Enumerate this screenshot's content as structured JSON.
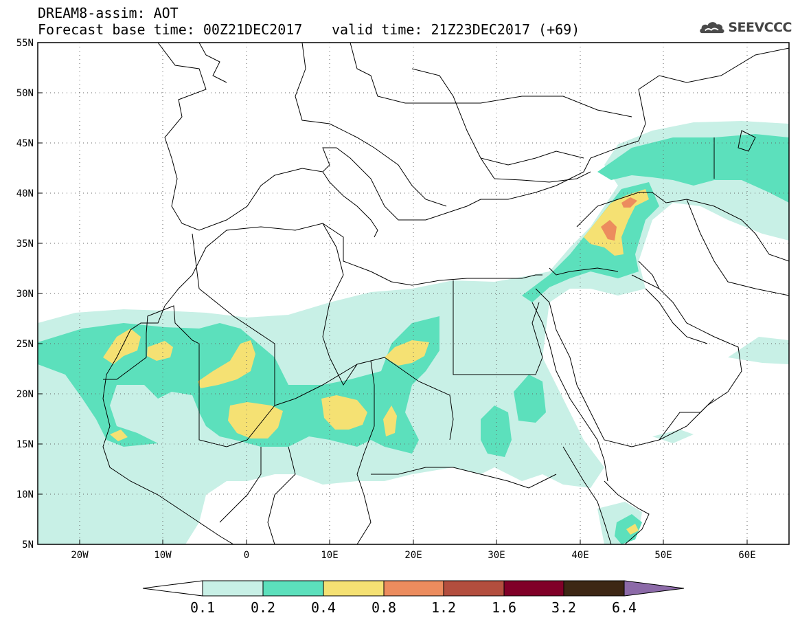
{
  "header": {
    "line1": "DREAM8-assim: AOT",
    "line2": "Forecast base time: 00Z21DEC2017",
    "valid": "valid time: 21Z23DEC2017 (+69)",
    "logo_text": "SEEVCCC",
    "logo_icon": "cloud-icon"
  },
  "map": {
    "lon_range": [
      -25,
      65
    ],
    "lat_range": [
      5,
      55
    ],
    "x_ticks": [
      "20W",
      "10W",
      "0",
      "10E",
      "20E",
      "30E",
      "40E",
      "50E",
      "60E"
    ],
    "y_ticks": [
      "55N",
      "50N",
      "45N",
      "40N",
      "35N",
      "30N",
      "25N",
      "20N",
      "15N",
      "10N",
      "5N"
    ],
    "grid": "dotted"
  },
  "colorbar": {
    "labels": [
      "0.1",
      "0.2",
      "0.4",
      "0.8",
      "1.2",
      "1.6",
      "3.2",
      "6.4"
    ],
    "colors": [
      "#ffffff",
      "#c8f0e6",
      "#5ce0bc",
      "#f5e173",
      "#ec8c5e",
      "#b34e3e",
      "#800028",
      "#3d2714",
      "#8c6aa8"
    ]
  }
}
